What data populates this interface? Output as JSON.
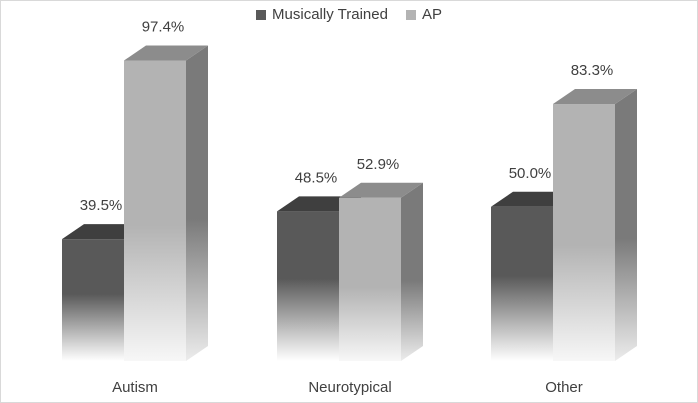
{
  "chart_data": {
    "type": "bar",
    "categories": [
      "Autism",
      "Neurotypical",
      "Other"
    ],
    "series": [
      {
        "name": "Musically Trained",
        "values": [
          39.5,
          48.5,
          50.0
        ],
        "labels": [
          "39.5%",
          "48.5%",
          "50.0%"
        ],
        "color": "#595959"
      },
      {
        "name": "AP",
        "values": [
          97.4,
          52.9,
          83.3
        ],
        "labels": [
          "97.4%",
          "52.9%",
          "83.3%"
        ],
        "color": "#b3b3b3"
      }
    ],
    "ylim": [
      0,
      100
    ],
    "legend": "top-center",
    "grid": false,
    "style": "3d-column"
  }
}
